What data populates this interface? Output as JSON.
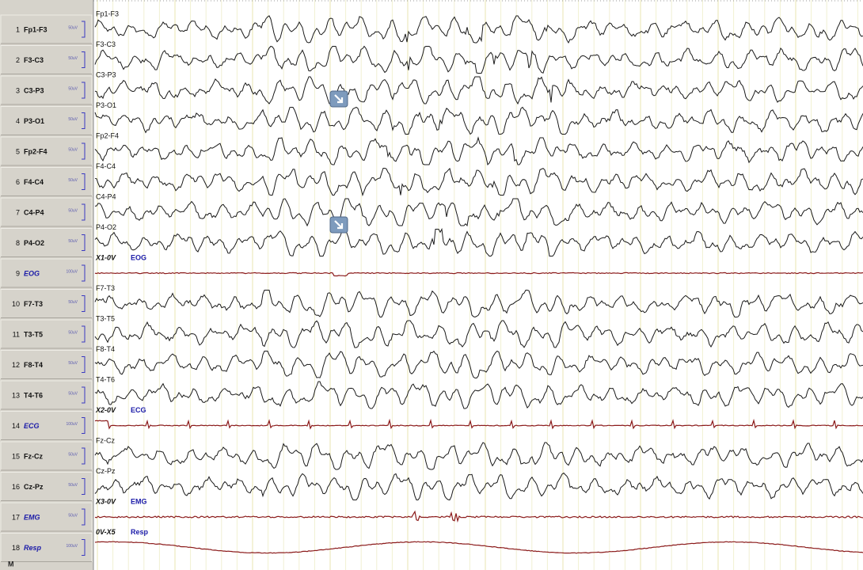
{
  "channels": [
    {
      "number": "1",
      "name": "Fp1-F3",
      "scale": "50uV",
      "trace_label": "Fp1-F3"
    },
    {
      "number": "2",
      "name": "F3-C3",
      "scale": "50uV",
      "trace_label": "F3-C3"
    },
    {
      "number": "3",
      "name": "C3-P3",
      "scale": "50uV",
      "trace_label": "C3-P3"
    },
    {
      "number": "4",
      "name": "P3-O1",
      "scale": "50uV",
      "trace_label": "P3-O1"
    },
    {
      "number": "5",
      "name": "Fp2-F4",
      "scale": "50uV",
      "trace_label": "Fp2-F4"
    },
    {
      "number": "6",
      "name": "F4-C4",
      "scale": "50uV",
      "trace_label": "F4-C4"
    },
    {
      "number": "7",
      "name": "C4-P4",
      "scale": "50uV",
      "trace_label": "C4-P4"
    },
    {
      "number": "8",
      "name": "P4-O2",
      "scale": "50uV",
      "trace_label": "P4-O2"
    },
    {
      "number": "9",
      "name": "EOG",
      "scale": "100uV",
      "trace_label": "X1-0V",
      "trace_sublabel": "EOG"
    },
    {
      "number": "10",
      "name": "F7-T3",
      "scale": "50uV",
      "trace_label": "F7-T3"
    },
    {
      "number": "11",
      "name": "T3-T5",
      "scale": "50uV",
      "trace_label": "T3-T5"
    },
    {
      "number": "12",
      "name": "F8-T4",
      "scale": "50uV",
      "trace_label": "F8-T4"
    },
    {
      "number": "13",
      "name": "T4-T6",
      "scale": "50uV",
      "trace_label": "T4-T6"
    },
    {
      "number": "14",
      "name": "ECG",
      "scale": "100uV",
      "trace_label": "X2-0V",
      "trace_sublabel": "ECG"
    },
    {
      "number": "15",
      "name": "Fz-Cz",
      "scale": "50uV",
      "trace_label": "Fz-Cz"
    },
    {
      "number": "16",
      "name": "Cz-Pz",
      "scale": "50uV",
      "trace_label": "Cz-Pz"
    },
    {
      "number": "17",
      "name": "EMG",
      "scale": "50uV",
      "trace_label": "X3-0V",
      "trace_sublabel": "EMG"
    },
    {
      "number": "18",
      "name": "Resp",
      "scale": "100uV",
      "trace_label": "0V-X5",
      "trace_sublabel": "Resp"
    }
  ],
  "footer_label": "M"
}
